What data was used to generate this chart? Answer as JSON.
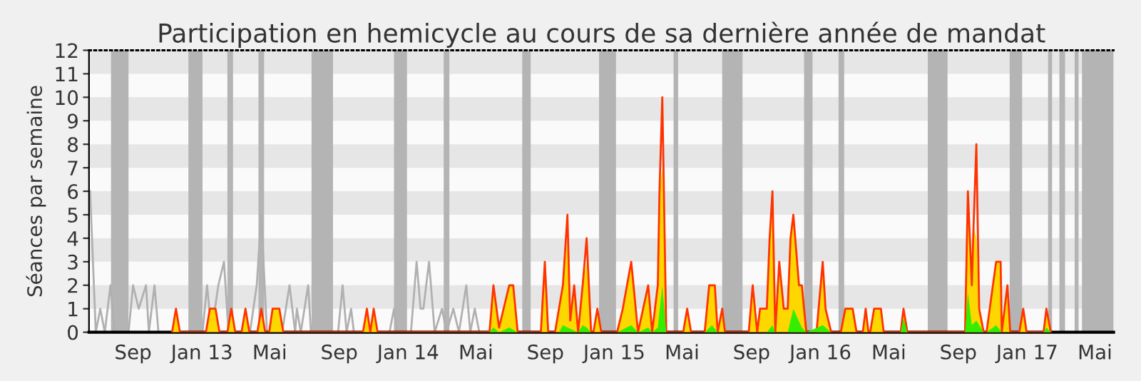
{
  "chart_data": {
    "type": "area",
    "title": "Participation en hemicycle au cours de sa dernière année de mandat",
    "ylabel": "Séances par semaine",
    "xlim": [
      "2012-06-15",
      "2017-06-03"
    ],
    "ylim": [
      0,
      12
    ],
    "yticks": [
      0,
      1,
      2,
      3,
      4,
      5,
      6,
      7,
      8,
      9,
      10,
      11,
      12
    ],
    "xticks": [
      {
        "value": "2012-09-01",
        "label": "Sep"
      },
      {
        "value": "2013-01-01",
        "label": "Jan 13"
      },
      {
        "value": "2013-05-01",
        "label": "Mai"
      },
      {
        "value": "2013-09-01",
        "label": "Sep"
      },
      {
        "value": "2014-01-01",
        "label": "Jan 14"
      },
      {
        "value": "2014-05-01",
        "label": "Mai"
      },
      {
        "value": "2014-09-01",
        "label": "Sep"
      },
      {
        "value": "2015-01-01",
        "label": "Jan 15"
      },
      {
        "value": "2015-05-01",
        "label": "Mai"
      },
      {
        "value": "2015-09-01",
        "label": "Sep"
      },
      {
        "value": "2016-01-01",
        "label": "Jan 16"
      },
      {
        "value": "2016-05-01",
        "label": "Mai"
      },
      {
        "value": "2016-09-01",
        "label": "Sep"
      },
      {
        "value": "2017-01-01",
        "label": "Jan 17"
      },
      {
        "value": "2017-05-01",
        "label": "Mai"
      }
    ],
    "legend": false,
    "bands": [
      {
        "axis": "y",
        "from": 1,
        "to": 2,
        "color": "#e6e6e6"
      },
      {
        "axis": "y",
        "from": 3,
        "to": 4,
        "color": "#e6e6e6"
      },
      {
        "axis": "y",
        "from": 5,
        "to": 6,
        "color": "#e6e6e6"
      },
      {
        "axis": "y",
        "from": 7,
        "to": 8,
        "color": "#e6e6e6"
      },
      {
        "axis": "y",
        "from": 9,
        "to": 10,
        "color": "#e6e6e6"
      },
      {
        "axis": "y",
        "from": 11,
        "to": 12,
        "color": "#e6e6e6"
      },
      {
        "axis": "x",
        "from": "2012-07-24",
        "to": "2012-08-24",
        "color": "#b4b4b4"
      },
      {
        "axis": "x",
        "from": "2012-12-08",
        "to": "2013-01-02",
        "color": "#b4b4b4"
      },
      {
        "axis": "x",
        "from": "2013-02-15",
        "to": "2013-02-25",
        "color": "#b4b4b4"
      },
      {
        "axis": "x",
        "from": "2013-04-11",
        "to": "2013-04-21",
        "color": "#b4b4b4"
      },
      {
        "axis": "x",
        "from": "2013-07-14",
        "to": "2013-08-21",
        "color": "#b4b4b4"
      },
      {
        "axis": "x",
        "from": "2013-12-07",
        "to": "2013-12-30",
        "color": "#b4b4b4"
      },
      {
        "axis": "x",
        "from": "2014-03-05",
        "to": "2014-03-15",
        "color": "#b4b4b4"
      },
      {
        "axis": "x",
        "from": "2014-07-22",
        "to": "2014-08-06",
        "color": "#b4b4b4"
      },
      {
        "axis": "x",
        "from": "2014-12-05",
        "to": "2015-01-04",
        "color": "#b4b4b4"
      },
      {
        "axis": "x",
        "from": "2015-04-16",
        "to": "2015-04-24",
        "color": "#b4b4b4"
      },
      {
        "axis": "x",
        "from": "2015-07-11",
        "to": "2015-08-16",
        "color": "#b4b4b4"
      },
      {
        "axis": "x",
        "from": "2015-12-03",
        "to": "2015-12-18",
        "color": "#b4b4b4"
      },
      {
        "axis": "x",
        "from": "2016-02-02",
        "to": "2016-02-12",
        "color": "#b4b4b4"
      },
      {
        "axis": "x",
        "from": "2016-07-09",
        "to": "2016-08-13",
        "color": "#b4b4b4"
      },
      {
        "axis": "x",
        "from": "2016-12-01",
        "to": "2016-12-23",
        "color": "#b4b4b4"
      },
      {
        "axis": "x",
        "from": "2017-02-07",
        "to": "2017-02-14",
        "color": "#b4b4b4"
      },
      {
        "axis": "x",
        "from": "2017-02-27",
        "to": "2017-03-09",
        "color": "#b4b4b4"
      },
      {
        "axis": "x",
        "from": "2017-03-26",
        "to": "2017-04-02",
        "color": "#b4b4b4"
      },
      {
        "axis": "x",
        "from": "2017-04-08",
        "to": "2017-06-03",
        "color": "#b4b4b4"
      }
    ],
    "series": [
      {
        "type": "line",
        "color": "#b0b0b0",
        "x": [
          "2012-06-17",
          "2012-06-27",
          "2012-07-05",
          "2012-07-13",
          "2012-07-23",
          "2012-07-30",
          "2012-08-24",
          "2012-09-01",
          "2012-09-11",
          "2012-09-24",
          "2012-09-29",
          "2012-10-09",
          "2012-10-16",
          "2013-01-02",
          "2013-01-10",
          "2013-01-18",
          "2013-01-30",
          "2013-02-09",
          "2013-02-17",
          "2013-03-27",
          "2013-04-08",
          "2013-04-16",
          "2013-04-26",
          "2013-05-23",
          "2013-06-05",
          "2013-06-15",
          "2013-06-18",
          "2013-06-25",
          "2013-07-08",
          "2013-07-13",
          "2013-08-30",
          "2013-09-07",
          "2013-09-14",
          "2013-09-22",
          "2013-09-27",
          "2013-11-29",
          "2013-12-07",
          "2013-12-12",
          "2014-01-06",
          "2014-01-16",
          "2014-01-23",
          "2014-01-28",
          "2014-02-07",
          "2014-02-17",
          "2014-03-02",
          "2014-03-10",
          "2014-03-22",
          "2014-04-01",
          "2014-04-14",
          "2014-04-21",
          "2014-04-29",
          "2014-05-07"
        ],
        "values": [
          6,
          0,
          1,
          0,
          2,
          0,
          0,
          2,
          1,
          2,
          0,
          2,
          0,
          0,
          2,
          0,
          2,
          3,
          0,
          0,
          2,
          5,
          0,
          0,
          2,
          0,
          1,
          0,
          2,
          0,
          0,
          2,
          0,
          1,
          0,
          0,
          1,
          0,
          0,
          3,
          1,
          1,
          3,
          0,
          1,
          0,
          1,
          0,
          2,
          0,
          1,
          0
        ]
      },
      {
        "color": "#ffd700",
        "x": [
          "2012-11-09",
          "2012-11-16",
          "2012-11-23",
          "2013-01-08",
          "2013-01-15",
          "2013-01-25",
          "2013-02-01",
          "2013-02-15",
          "2013-02-22",
          "2013-03-01",
          "2013-03-12",
          "2013-03-19",
          "2013-03-26",
          "2013-04-09",
          "2013-04-16",
          "2013-04-23",
          "2013-04-30",
          "2013-05-06",
          "2013-05-18",
          "2013-05-25",
          "2013-10-13",
          "2013-10-20",
          "2013-10-26",
          "2013-11-01",
          "2013-11-08",
          "2014-05-25",
          "2014-06-01",
          "2014-06-11",
          "2014-06-19",
          "2014-06-29",
          "2014-07-06",
          "2014-07-14",
          "2014-08-24",
          "2014-08-31",
          "2014-09-06",
          "2014-09-18",
          "2014-09-25",
          "2014-10-02",
          "2014-10-10",
          "2014-10-15",
          "2014-10-22",
          "2014-10-29",
          "2014-11-06",
          "2014-11-13",
          "2014-11-21",
          "2014-11-25",
          "2014-12-02",
          "2014-12-09",
          "2015-01-06",
          "2015-01-16",
          "2015-01-31",
          "2015-02-12",
          "2015-03-02",
          "2015-03-09",
          "2015-03-19",
          "2015-03-22",
          "2015-03-27",
          "2015-04-03",
          "2015-05-03",
          "2015-05-10",
          "2015-05-17",
          "2015-06-10",
          "2015-06-18",
          "2015-06-28",
          "2015-07-03",
          "2015-07-11",
          "2015-07-16",
          "2015-08-27",
          "2015-09-03",
          "2015-09-11",
          "2015-09-16",
          "2015-09-28",
          "2015-10-03",
          "2015-10-08",
          "2015-10-13",
          "2015-10-20",
          "2015-10-28",
          "2015-11-04",
          "2015-11-09",
          "2015-11-14",
          "2015-11-24",
          "2015-11-29",
          "2015-12-07",
          "2015-12-25",
          "2016-01-05",
          "2016-01-10",
          "2016-01-20",
          "2016-02-06",
          "2016-02-14",
          "2016-02-27",
          "2016-03-05",
          "2016-03-16",
          "2016-03-21",
          "2016-03-26",
          "2016-03-29",
          "2016-04-05",
          "2016-04-17",
          "2016-04-22",
          "2016-05-22",
          "2016-05-27",
          "2016-06-03",
          "2016-09-13",
          "2016-09-18",
          "2016-09-25",
          "2016-09-28",
          "2016-10-03",
          "2016-10-08",
          "2016-10-16",
          "2016-10-21",
          "2016-11-07",
          "2016-11-15",
          "2016-11-17",
          "2016-11-27",
          "2016-12-02",
          "2016-12-18",
          "2016-12-25",
          "2016-12-31",
          "2017-01-30",
          "2017-02-04",
          "2017-02-12"
        ],
        "values": [
          0,
          1,
          0,
          0,
          1,
          1,
          0,
          0,
          1,
          0,
          0,
          1,
          0,
          0,
          1,
          0,
          0,
          1,
          1,
          0,
          0,
          1,
          0,
          1,
          0,
          0,
          2,
          0.2,
          1,
          2,
          2,
          0,
          0,
          3,
          0,
          0,
          1,
          2,
          4,
          0.5,
          2,
          0,
          2,
          3,
          0,
          0,
          1,
          0,
          0,
          1,
          3,
          0,
          2,
          0,
          2,
          6,
          7,
          0,
          0,
          1,
          0,
          0,
          2,
          2,
          0,
          1,
          0,
          0,
          2,
          0,
          1,
          1,
          4,
          5,
          0,
          3,
          1,
          1,
          4,
          5,
          2,
          2,
          0,
          0,
          3,
          1,
          0,
          0,
          1,
          1,
          0,
          0,
          1,
          0,
          0,
          1,
          1,
          0,
          0,
          1,
          0,
          0,
          5,
          2,
          4.5,
          4,
          1,
          0,
          0,
          3,
          3,
          0,
          2,
          0,
          0,
          1,
          0,
          0,
          1,
          0
        ]
      },
      {
        "type": "line",
        "color": "#ff3300",
        "x": [
          "2012-11-09",
          "2012-11-16",
          "2012-11-23",
          "2013-01-08",
          "2013-01-15",
          "2013-01-25",
          "2013-02-01",
          "2013-02-15",
          "2013-02-22",
          "2013-03-01",
          "2013-03-12",
          "2013-03-19",
          "2013-03-26",
          "2013-04-09",
          "2013-04-16",
          "2013-04-23",
          "2013-04-30",
          "2013-05-06",
          "2013-05-18",
          "2013-05-25",
          "2013-10-13",
          "2013-10-20",
          "2013-10-26",
          "2013-11-01",
          "2013-11-08",
          "2014-05-25",
          "2014-06-01",
          "2014-06-11",
          "2014-06-19",
          "2014-06-29",
          "2014-07-06",
          "2014-07-14",
          "2014-08-24",
          "2014-08-31",
          "2014-09-06",
          "2014-09-18",
          "2014-09-25",
          "2014-10-02",
          "2014-10-10",
          "2014-10-15",
          "2014-10-22",
          "2014-10-29",
          "2014-11-06",
          "2014-11-13",
          "2014-11-21",
          "2014-11-25",
          "2014-12-02",
          "2014-12-09",
          "2015-01-06",
          "2015-01-16",
          "2015-01-31",
          "2015-02-12",
          "2015-03-02",
          "2015-03-09",
          "2015-03-19",
          "2015-03-22",
          "2015-03-27",
          "2015-04-03",
          "2015-05-03",
          "2015-05-10",
          "2015-05-17",
          "2015-06-10",
          "2015-06-18",
          "2015-06-28",
          "2015-07-03",
          "2015-07-11",
          "2015-07-16",
          "2015-08-27",
          "2015-09-03",
          "2015-09-11",
          "2015-09-16",
          "2015-09-28",
          "2015-10-03",
          "2015-10-08",
          "2015-10-13",
          "2015-10-20",
          "2015-10-28",
          "2015-11-04",
          "2015-11-09",
          "2015-11-14",
          "2015-11-24",
          "2015-11-29",
          "2015-12-07",
          "2015-12-25",
          "2016-01-05",
          "2016-01-10",
          "2016-01-20",
          "2016-02-06",
          "2016-02-14",
          "2016-02-27",
          "2016-03-05",
          "2016-03-16",
          "2016-03-21",
          "2016-03-26",
          "2016-03-29",
          "2016-04-05",
          "2016-04-17",
          "2016-04-22",
          "2016-05-22",
          "2016-05-27",
          "2016-06-03",
          "2016-09-13",
          "2016-09-18",
          "2016-09-25",
          "2016-09-28",
          "2016-10-03",
          "2016-10-08",
          "2016-10-16",
          "2016-10-21",
          "2016-11-07",
          "2016-11-15",
          "2016-11-17",
          "2016-11-27",
          "2016-12-02",
          "2016-12-18",
          "2016-12-25",
          "2016-12-31",
          "2017-01-30",
          "2017-02-04",
          "2017-02-12"
        ],
        "values": [
          0,
          1,
          0,
          0,
          1,
          1,
          0,
          0,
          1,
          0,
          0,
          1,
          0,
          0,
          1,
          0,
          0,
          1,
          1,
          0,
          0,
          1,
          0,
          1,
          0,
          0,
          2,
          0.2,
          1,
          2,
          2,
          0,
          0,
          3,
          0,
          0,
          1,
          2,
          5,
          0.5,
          2,
          0,
          2,
          4,
          0,
          0,
          1,
          0,
          0,
          1,
          3,
          0,
          2,
          0,
          2,
          6,
          10,
          0,
          0,
          1,
          0,
          0,
          2,
          2,
          0,
          1,
          0,
          0,
          2,
          0,
          1,
          1,
          4,
          6,
          0,
          3,
          1,
          1,
          4,
          5,
          2,
          2,
          0,
          0,
          3,
          1,
          0,
          0,
          1,
          1,
          0,
          0,
          1,
          0,
          0,
          1,
          1,
          0,
          0,
          1,
          0,
          0,
          6,
          2,
          4.5,
          8,
          1,
          0,
          0,
          3,
          3,
          0,
          2,
          0,
          0,
          1,
          0,
          0,
          1,
          0
        ]
      },
      {
        "type": "area",
        "color": "#33ee00",
        "x": [
          "2014-05-25",
          "2014-06-01",
          "2014-06-11",
          "2014-06-29",
          "2014-07-14",
          "2014-09-25",
          "2014-10-02",
          "2014-10-10",
          "2014-10-29",
          "2014-11-06",
          "2014-11-13",
          "2014-11-21",
          "2015-01-06",
          "2015-01-31",
          "2015-02-12",
          "2015-03-02",
          "2015-03-09",
          "2015-03-19",
          "2015-03-27",
          "2015-04-03",
          "2015-06-10",
          "2015-06-23",
          "2015-07-03",
          "2015-09-28",
          "2015-10-08",
          "2015-10-13",
          "2015-11-04",
          "2015-11-14",
          "2015-11-29",
          "2015-12-07",
          "2016-01-05",
          "2016-01-20",
          "2016-05-22",
          "2016-05-27",
          "2016-06-03",
          "2016-09-13",
          "2016-09-18",
          "2016-09-25",
          "2016-10-03",
          "2016-10-16",
          "2016-10-21",
          "2016-11-07",
          "2016-11-17",
          "2017-01-30",
          "2017-02-04",
          "2017-02-12"
        ],
        "values": [
          0,
          0.2,
          0,
          0.2,
          0,
          0,
          0.3,
          0.2,
          0,
          0.3,
          0.2,
          0,
          0,
          0.3,
          0,
          0.2,
          0,
          0.2,
          2,
          0,
          0,
          0.3,
          0,
          0,
          0.3,
          0,
          0,
          1,
          0.2,
          0,
          0.3,
          0,
          0,
          0.6,
          0,
          0,
          1.7,
          0.3,
          0.5,
          0,
          0,
          0.3,
          0,
          0,
          0.2,
          0
        ]
      }
    ]
  }
}
